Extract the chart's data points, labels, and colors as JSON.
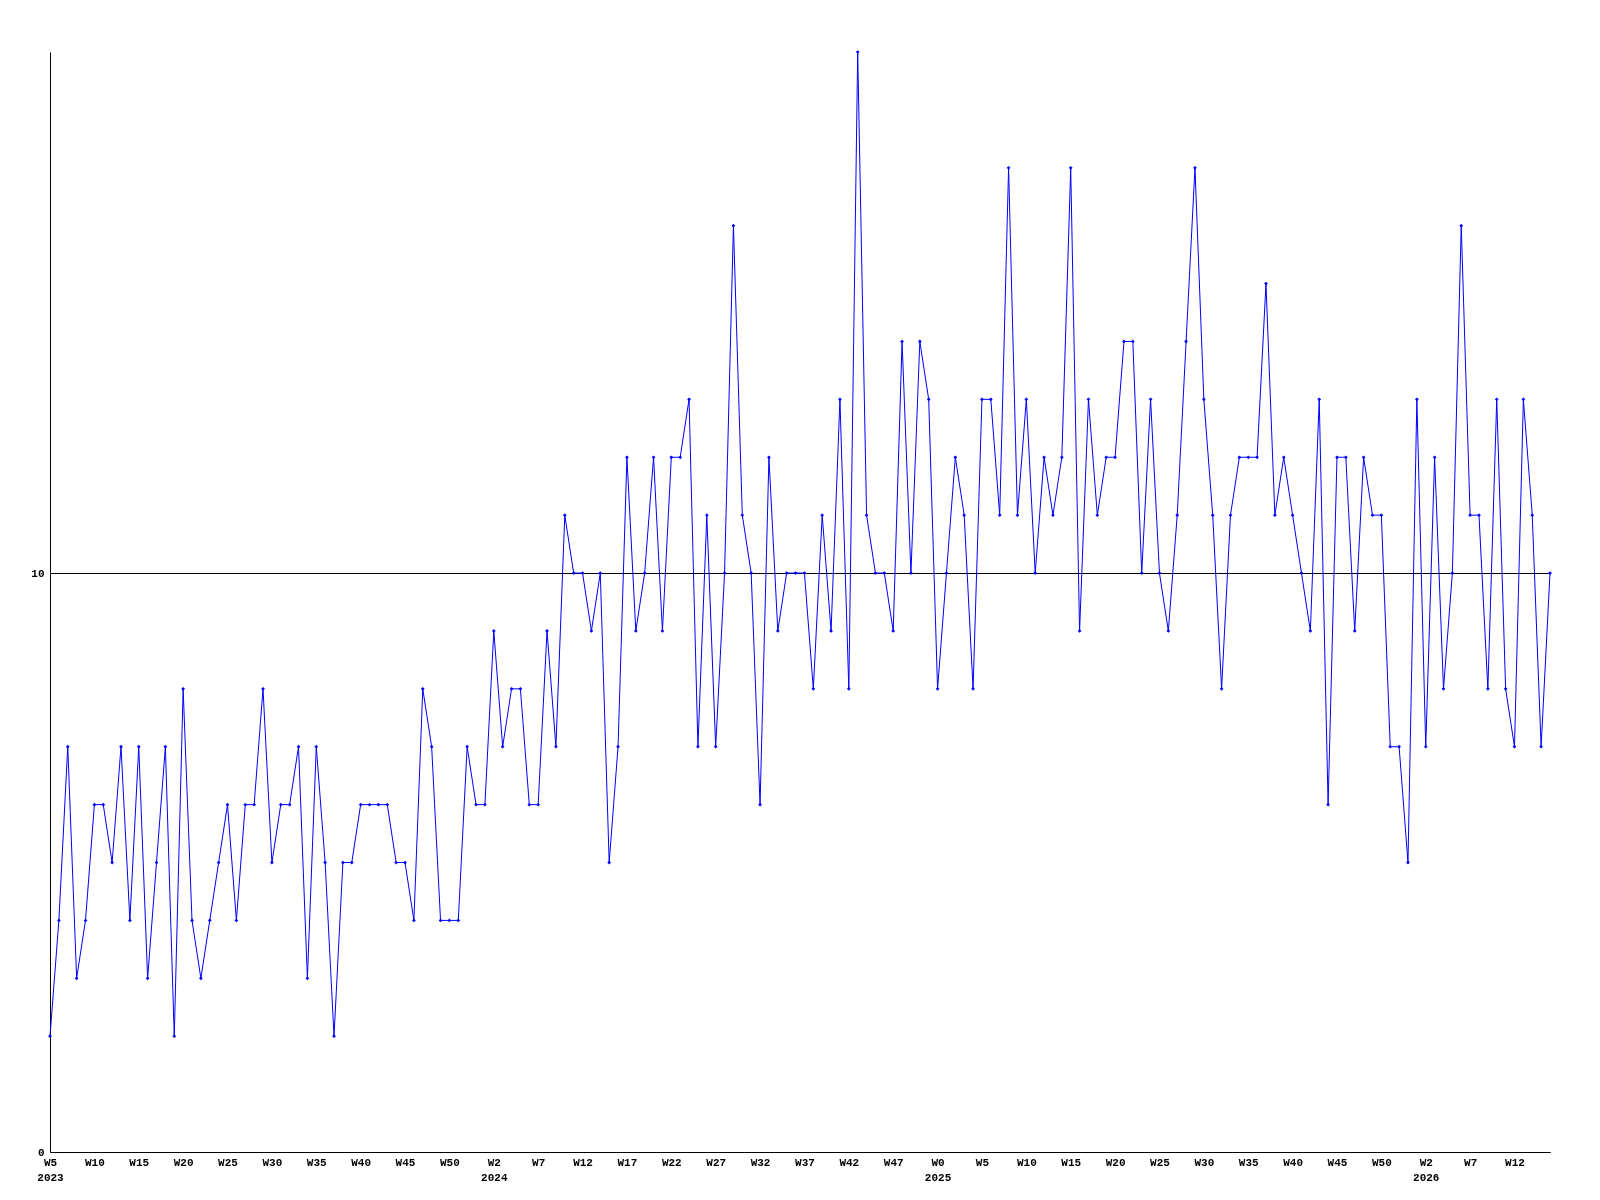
{
  "chart_data": {
    "type": "line",
    "categories": [
      "W5\n2023",
      null,
      null,
      null,
      null,
      "W10",
      null,
      null,
      null,
      null,
      "W15",
      null,
      null,
      null,
      null,
      "W20",
      null,
      null,
      null,
      null,
      "W25",
      null,
      null,
      null,
      null,
      "W30",
      null,
      null,
      null,
      null,
      "W35",
      null,
      null,
      null,
      null,
      "W40",
      null,
      null,
      null,
      null,
      "W45",
      null,
      null,
      null,
      null,
      "W50",
      null,
      null,
      null,
      null,
      "W2\n2024",
      null,
      null,
      null,
      null,
      "W7",
      null,
      null,
      null,
      null,
      "W12",
      null,
      null,
      null,
      null,
      "W17",
      null,
      null,
      null,
      null,
      "W22",
      null,
      null,
      null,
      null,
      "W27",
      null,
      null,
      null,
      null,
      "W32",
      null,
      null,
      null,
      null,
      "W37",
      null,
      null,
      null,
      null,
      "W42",
      null,
      null,
      null,
      null,
      "W47",
      null,
      null,
      null,
      null,
      "W0\n2025",
      null,
      null,
      null,
      null,
      "W5",
      null,
      null,
      null,
      null,
      "W10",
      null,
      null,
      null,
      null,
      "W15",
      null,
      null,
      null,
      null,
      "W20",
      null,
      null,
      null,
      null,
      "W25",
      null,
      null,
      null,
      null,
      "W30",
      null,
      null,
      null,
      null,
      "W35",
      null,
      null,
      null,
      null,
      "W40",
      null,
      null,
      null,
      null,
      "W45",
      null,
      null,
      null,
      null,
      "W50",
      null,
      null,
      null,
      null,
      "W2\n2026",
      null,
      null,
      null,
      null,
      "W7",
      null,
      null,
      null,
      null,
      "W12",
      null,
      null,
      null,
      null
    ],
    "series": [
      {
        "color": "#0000ff",
        "values": [
          2,
          4,
          7,
          3,
          4,
          6,
          6,
          5,
          7,
          4,
          7,
          3,
          5,
          7,
          2,
          8,
          4,
          3,
          4,
          5,
          6,
          4,
          6,
          6,
          8,
          5,
          6,
          6,
          7,
          3,
          7,
          5,
          2,
          5,
          5,
          6,
          6,
          6,
          6,
          5,
          5,
          4,
          8,
          7,
          4,
          4,
          4,
          7,
          6,
          6,
          9,
          7,
          8,
          8,
          6,
          6,
          9,
          7,
          11,
          10,
          10,
          9,
          10,
          5,
          7,
          12,
          9,
          10,
          12,
          9,
          12,
          12,
          13,
          7,
          11,
          7,
          10,
          16,
          11,
          10,
          6,
          12,
          9,
          10,
          10,
          10,
          8,
          11,
          9,
          13,
          8,
          19,
          11,
          10,
          10,
          9,
          14,
          10,
          14,
          13,
          8,
          10,
          12,
          11,
          8,
          13,
          13,
          11,
          17,
          11,
          13,
          10,
          12,
          11,
          12,
          17,
          9,
          13,
          11,
          12,
          12,
          14,
          14,
          10,
          13,
          10,
          9,
          11,
          14,
          17,
          13,
          11,
          8,
          11,
          12,
          12,
          12,
          15,
          11,
          12,
          11,
          10,
          9,
          13,
          6,
          12,
          12,
          9,
          12,
          11,
          11,
          7,
          7,
          5,
          13,
          7,
          12,
          8,
          10,
          16,
          11,
          11,
          8,
          13,
          8,
          7,
          13,
          11,
          7,
          10
        ]
      }
    ],
    "ylim": [
      0,
      19
    ],
    "yticks": [
      0,
      10
    ],
    "grid": "y",
    "marker": "diamond",
    "line_style": "solid"
  }
}
